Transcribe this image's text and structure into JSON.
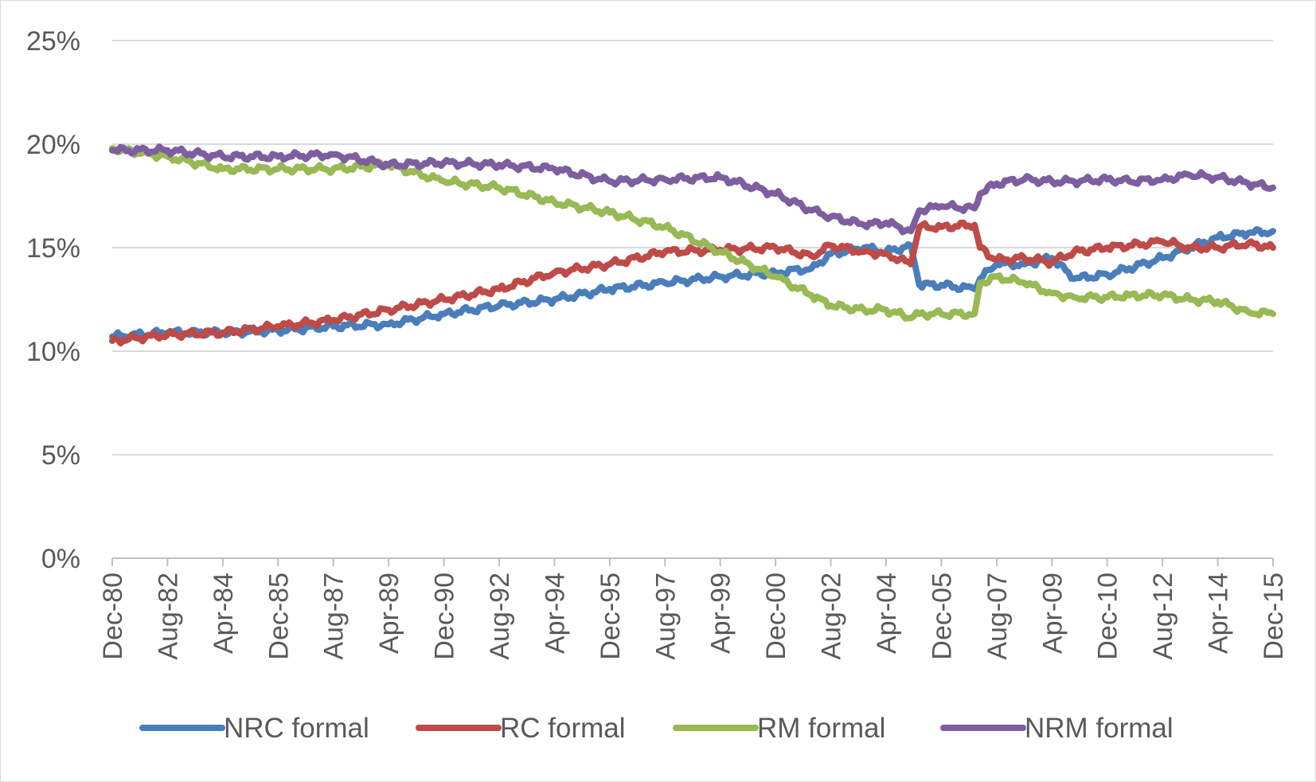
{
  "chart_data": {
    "type": "line",
    "title": "",
    "xlabel": "",
    "ylabel": "",
    "ylim": [
      0,
      25
    ],
    "y_ticks": [
      {
        "value": 0,
        "label": "0%"
      },
      {
        "value": 5,
        "label": "5%"
      },
      {
        "value": 10,
        "label": "10%"
      },
      {
        "value": 15,
        "label": "15%"
      },
      {
        "value": 20,
        "label": "20%"
      },
      {
        "value": 25,
        "label": "25%"
      }
    ],
    "x_range": [
      "1980-12",
      "2015-12"
    ],
    "x_ticks": [
      {
        "date": "1980-12",
        "label": "Dec-80"
      },
      {
        "date": "1982-08",
        "label": "Aug-82"
      },
      {
        "date": "1984-04",
        "label": "Apr-84"
      },
      {
        "date": "1985-12",
        "label": "Dec-85"
      },
      {
        "date": "1987-08",
        "label": "Aug-87"
      },
      {
        "date": "1989-04",
        "label": "Apr-89"
      },
      {
        "date": "1990-12",
        "label": "Dec-90"
      },
      {
        "date": "1992-08",
        "label": "Aug-92"
      },
      {
        "date": "1994-04",
        "label": "Apr-94"
      },
      {
        "date": "1995-12",
        "label": "Dec-95"
      },
      {
        "date": "1997-08",
        "label": "Aug-97"
      },
      {
        "date": "1999-04",
        "label": "Apr-99"
      },
      {
        "date": "2000-12",
        "label": "Dec-00"
      },
      {
        "date": "2002-08",
        "label": "Aug-02"
      },
      {
        "date": "2004-04",
        "label": "Apr-04"
      },
      {
        "date": "2005-12",
        "label": "Dec-05"
      },
      {
        "date": "2007-08",
        "label": "Aug-07"
      },
      {
        "date": "2009-04",
        "label": "Apr-09"
      },
      {
        "date": "2010-12",
        "label": "Dec-10"
      },
      {
        "date": "2012-08",
        "label": "Aug-12"
      },
      {
        "date": "2014-04",
        "label": "Apr-14"
      },
      {
        "date": "2015-12",
        "label": "Dec-15"
      }
    ],
    "grid": true,
    "legend_position": "bottom",
    "series": [
      {
        "name": "NRC formal",
        "color": "#4a7ebb",
        "points": [
          [
            "1980-12",
            10.7
          ],
          [
            "1982-08",
            10.9
          ],
          [
            "1984-04",
            10.9
          ],
          [
            "1985-12",
            11.0
          ],
          [
            "1987-08",
            11.2
          ],
          [
            "1989-04",
            11.3
          ],
          [
            "1990-12",
            11.8
          ],
          [
            "1992-08",
            12.2
          ],
          [
            "1994-04",
            12.5
          ],
          [
            "1995-12",
            13.0
          ],
          [
            "1997-08",
            13.3
          ],
          [
            "1999-04",
            13.6
          ],
          [
            "2000-12",
            13.8
          ],
          [
            "2002-01",
            14.0
          ],
          [
            "2002-08",
            14.7
          ],
          [
            "2003-08",
            15.0
          ],
          [
            "2004-04",
            14.8
          ],
          [
            "2005-01",
            15.1
          ],
          [
            "2005-04",
            13.2
          ],
          [
            "2005-12",
            13.2
          ],
          [
            "2006-12",
            13.0
          ],
          [
            "2007-02",
            13.5
          ],
          [
            "2007-08",
            14.2
          ],
          [
            "2008-06",
            14.2
          ],
          [
            "2009-04",
            14.5
          ],
          [
            "2009-12",
            13.5
          ],
          [
            "2010-12",
            13.7
          ],
          [
            "2011-08",
            14.0
          ],
          [
            "2012-08",
            14.5
          ],
          [
            "2013-06",
            15.0
          ],
          [
            "2014-04",
            15.5
          ],
          [
            "2015-03",
            15.7
          ],
          [
            "2015-12",
            15.8
          ]
        ]
      },
      {
        "name": "RC formal",
        "color": "#be4b48",
        "points": [
          [
            "1980-12",
            10.5
          ],
          [
            "1982-08",
            10.8
          ],
          [
            "1984-04",
            10.9
          ],
          [
            "1985-12",
            11.2
          ],
          [
            "1987-08",
            11.5
          ],
          [
            "1989-04",
            12.0
          ],
          [
            "1990-12",
            12.5
          ],
          [
            "1992-08",
            13.0
          ],
          [
            "1994-04",
            13.8
          ],
          [
            "1995-12",
            14.2
          ],
          [
            "1997-08",
            14.8
          ],
          [
            "1999-04",
            14.9
          ],
          [
            "2000-12",
            15.0
          ],
          [
            "2002-01",
            14.6
          ],
          [
            "2002-08",
            15.1
          ],
          [
            "2003-08",
            14.8
          ],
          [
            "2004-04",
            14.7
          ],
          [
            "2005-01",
            14.2
          ],
          [
            "2005-04",
            16.0
          ],
          [
            "2005-12",
            16.0
          ],
          [
            "2006-12",
            16.1
          ],
          [
            "2007-02",
            15.0
          ],
          [
            "2007-08",
            14.4
          ],
          [
            "2008-06",
            14.5
          ],
          [
            "2009-04",
            14.3
          ],
          [
            "2009-12",
            14.8
          ],
          [
            "2010-12",
            15.0
          ],
          [
            "2011-08",
            15.1
          ],
          [
            "2012-08",
            15.3
          ],
          [
            "2013-06",
            15.0
          ],
          [
            "2014-04",
            15.0
          ],
          [
            "2015-03",
            15.2
          ],
          [
            "2015-12",
            15.0
          ]
        ]
      },
      {
        "name": "RM formal",
        "color": "#98b954",
        "points": [
          [
            "1980-12",
            19.8
          ],
          [
            "1982-08",
            19.4
          ],
          [
            "1984-04",
            18.8
          ],
          [
            "1985-12",
            18.8
          ],
          [
            "1987-08",
            18.8
          ],
          [
            "1989-04",
            19.0
          ],
          [
            "1990-12",
            18.2
          ],
          [
            "1992-08",
            17.9
          ],
          [
            "1994-04",
            17.2
          ],
          [
            "1995-12",
            16.7
          ],
          [
            "1997-08",
            16.0
          ],
          [
            "1999-04",
            14.8
          ],
          [
            "2000-12",
            13.6
          ],
          [
            "2002-01",
            12.7
          ],
          [
            "2002-08",
            12.2
          ],
          [
            "2003-08",
            12.0
          ],
          [
            "2004-04",
            12.0
          ],
          [
            "2005-01",
            11.6
          ],
          [
            "2005-04",
            11.8
          ],
          [
            "2005-12",
            11.8
          ],
          [
            "2006-12",
            11.8
          ],
          [
            "2007-02",
            13.3
          ],
          [
            "2007-08",
            13.6
          ],
          [
            "2008-06",
            13.3
          ],
          [
            "2009-04",
            12.8
          ],
          [
            "2009-12",
            12.6
          ],
          [
            "2010-12",
            12.6
          ],
          [
            "2011-08",
            12.7
          ],
          [
            "2012-08",
            12.7
          ],
          [
            "2013-06",
            12.5
          ],
          [
            "2014-04",
            12.4
          ],
          [
            "2015-03",
            11.9
          ],
          [
            "2015-12",
            11.8
          ]
        ]
      },
      {
        "name": "NRM formal",
        "color": "#7d5fa0",
        "points": [
          [
            "1980-12",
            19.7
          ],
          [
            "1982-08",
            19.7
          ],
          [
            "1984-04",
            19.4
          ],
          [
            "1985-12",
            19.4
          ],
          [
            "1987-08",
            19.5
          ],
          [
            "1989-04",
            19.0
          ],
          [
            "1990-12",
            19.1
          ],
          [
            "1992-08",
            19.0
          ],
          [
            "1994-04",
            18.8
          ],
          [
            "1995-12",
            18.2
          ],
          [
            "1997-08",
            18.3
          ],
          [
            "1999-04",
            18.4
          ],
          [
            "2000-12",
            17.6
          ],
          [
            "2002-01",
            16.8
          ],
          [
            "2002-08",
            16.5
          ],
          [
            "2003-08",
            16.1
          ],
          [
            "2004-04",
            16.2
          ],
          [
            "2005-01",
            15.8
          ],
          [
            "2005-04",
            16.8
          ],
          [
            "2005-12",
            17.0
          ],
          [
            "2006-12",
            16.9
          ],
          [
            "2007-02",
            17.6
          ],
          [
            "2007-08",
            18.1
          ],
          [
            "2008-06",
            18.3
          ],
          [
            "2009-04",
            18.2
          ],
          [
            "2009-12",
            18.2
          ],
          [
            "2010-12",
            18.3
          ],
          [
            "2011-08",
            18.2
          ],
          [
            "2012-08",
            18.3
          ],
          [
            "2013-06",
            18.5
          ],
          [
            "2014-04",
            18.4
          ],
          [
            "2015-03",
            18.1
          ],
          [
            "2015-12",
            17.9
          ]
        ]
      }
    ]
  }
}
